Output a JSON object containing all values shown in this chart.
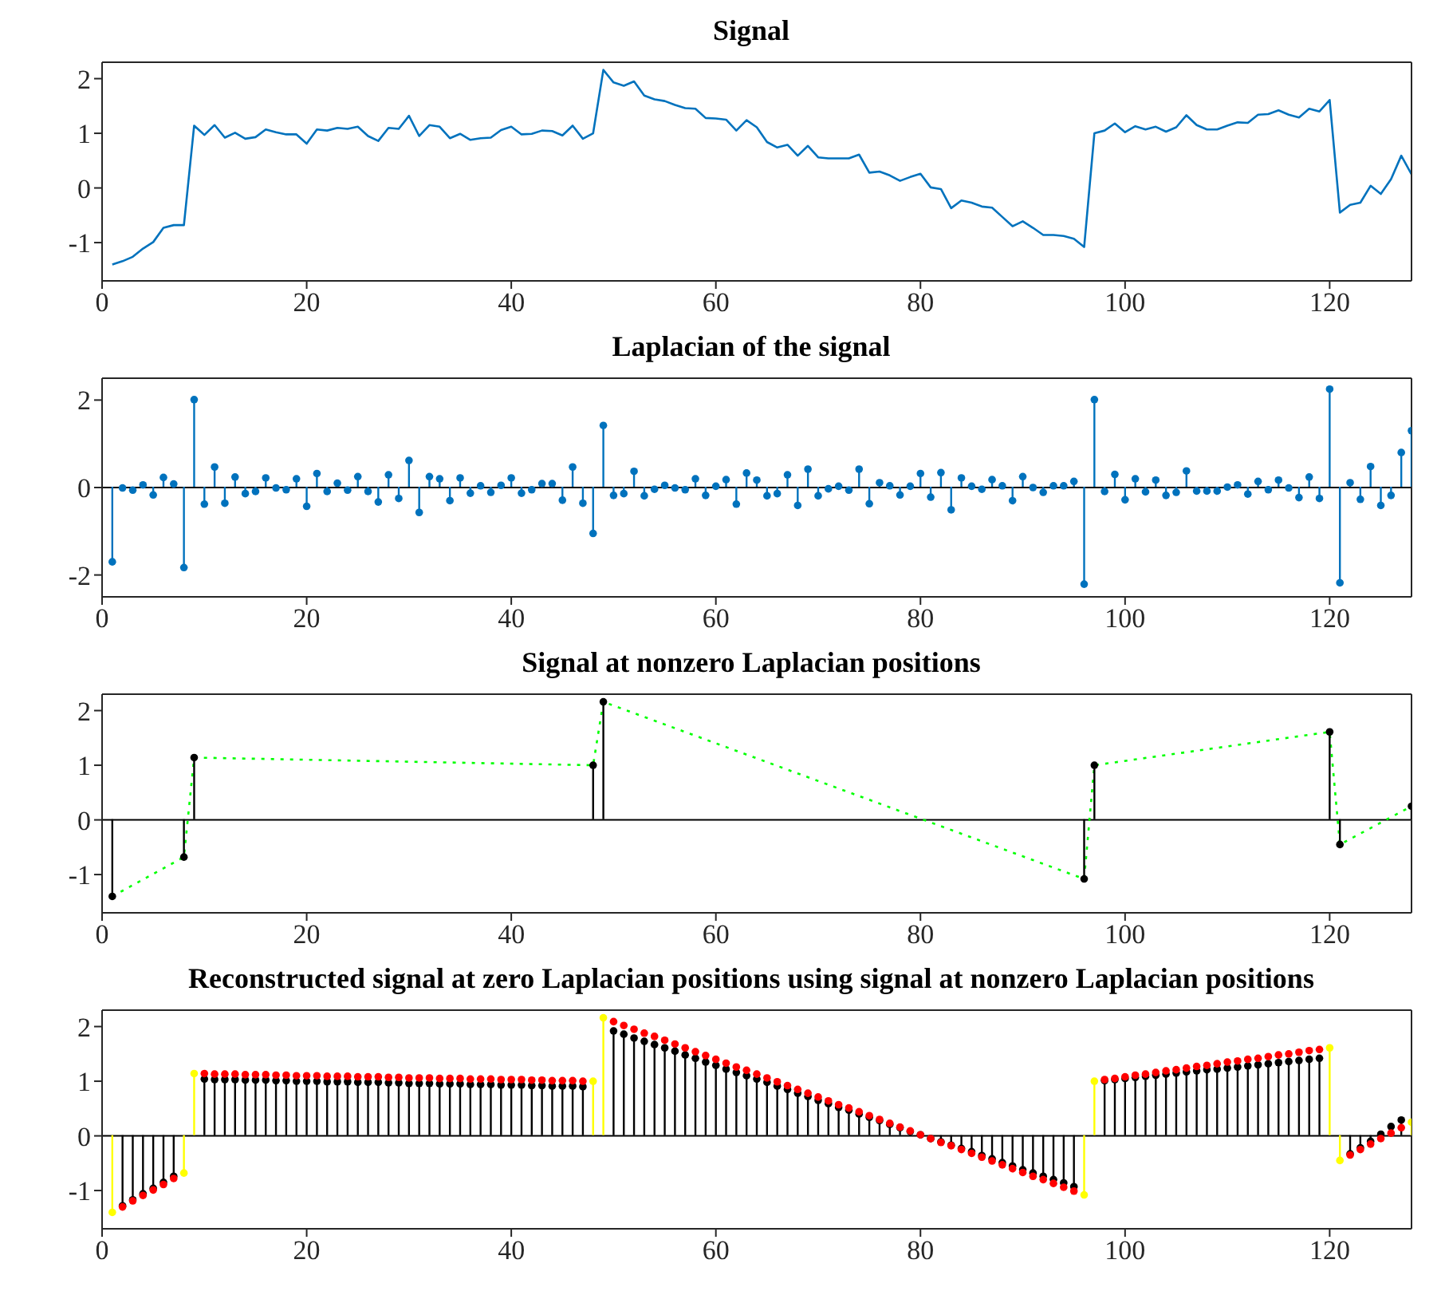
{
  "chart_data": [
    {
      "type": "line",
      "title": "Signal",
      "x": [
        1,
        2,
        3,
        4,
        5,
        6,
        7,
        8,
        9,
        10,
        11,
        12,
        13,
        14,
        15,
        16,
        17,
        18,
        19,
        20,
        21,
        22,
        23,
        24,
        25,
        26,
        27,
        28,
        29,
        30,
        31,
        32,
        33,
        34,
        35,
        36,
        37,
        38,
        39,
        40,
        41,
        42,
        43,
        44,
        45,
        46,
        47,
        48,
        49,
        50,
        51,
        52,
        53,
        54,
        55,
        56,
        57,
        58,
        59,
        60,
        61,
        62,
        63,
        64,
        65,
        66,
        67,
        68,
        69,
        70,
        71,
        72,
        73,
        74,
        75,
        76,
        77,
        78,
        79,
        80,
        81,
        82,
        83,
        84,
        85,
        86,
        87,
        88,
        89,
        90,
        91,
        92,
        93,
        94,
        95,
        96,
        97,
        98,
        99,
        100,
        101,
        102,
        103,
        104,
        105,
        106,
        107,
        108,
        109,
        110,
        111,
        112,
        113,
        114,
        115,
        116,
        117,
        118,
        119,
        120,
        121,
        122,
        123,
        124,
        125,
        126,
        127,
        128
      ],
      "xlim": [
        0,
        128
      ],
      "xticks": [
        0,
        20,
        40,
        60,
        80,
        100,
        120
      ],
      "ylim": [
        -1.7,
        2.3
      ],
      "yticks": [
        -1,
        0,
        1,
        2
      ],
      "series": [
        {
          "color": "#0072bd",
          "values": [
            -1.4,
            -1.34,
            -1.26,
            -1.11,
            -0.99,
            -0.73,
            -0.68,
            -0.68,
            1.14,
            0.97,
            1.15,
            0.92,
            1.01,
            0.9,
            0.93,
            1.07,
            1.02,
            0.98,
            0.98,
            0.81,
            1.07,
            1.05,
            1.1,
            1.08,
            1.12,
            0.95,
            0.86,
            1.1,
            1.08,
            1.32,
            0.95,
            1.15,
            1.12,
            0.91,
            0.99,
            0.88,
            0.91,
            0.92,
            1.06,
            1.12,
            0.98,
            0.99,
            1.05,
            1.04,
            0.96,
            1.14,
            0.9,
            1.0,
            2.16,
            1.93,
            1.87,
            1.95,
            1.69,
            1.62,
            1.59,
            1.52,
            1.46,
            1.45,
            1.28,
            1.27,
            1.25,
            1.05,
            1.24,
            1.11,
            0.84,
            0.74,
            0.79,
            0.59,
            0.77,
            0.56,
            0.54,
            0.54,
            0.54,
            0.61,
            0.28,
            0.3,
            0.23,
            0.13,
            0.2,
            0.26,
            0.01,
            -0.02,
            -0.37,
            -0.23,
            -0.27,
            -0.34,
            -0.36,
            -0.53,
            -0.7,
            -0.61,
            -0.73,
            -0.86,
            -0.86,
            -0.88,
            -0.93,
            -1.08,
            1.0,
            1.05,
            1.18,
            1.02,
            1.13,
            1.07,
            1.12,
            1.03,
            1.11,
            1.33,
            1.15,
            1.07,
            1.07,
            1.14,
            1.2,
            1.19,
            1.34,
            1.35,
            1.42,
            1.34,
            1.29,
            1.45,
            1.4,
            1.61,
            -0.45,
            -0.31,
            -0.27,
            0.04,
            -0.11,
            0.16,
            0.59,
            0.25
          ]
        }
      ]
    },
    {
      "type": "lollipop",
      "title": "Laplacian of the signal",
      "marker": "circle",
      "x": [
        1,
        2,
        3,
        4,
        5,
        6,
        7,
        8,
        9,
        10,
        11,
        12,
        13,
        14,
        15,
        16,
        17,
        18,
        19,
        20,
        21,
        22,
        23,
        24,
        25,
        26,
        27,
        28,
        29,
        30,
        31,
        32,
        33,
        34,
        35,
        36,
        37,
        38,
        39,
        40,
        41,
        42,
        43,
        44,
        45,
        46,
        47,
        48,
        49,
        50,
        51,
        52,
        53,
        54,
        55,
        56,
        57,
        58,
        59,
        60,
        61,
        62,
        63,
        64,
        65,
        66,
        67,
        68,
        69,
        70,
        71,
        72,
        73,
        74,
        75,
        76,
        77,
        78,
        79,
        80,
        81,
        82,
        83,
        84,
        85,
        86,
        87,
        88,
        89,
        90,
        91,
        92,
        93,
        94,
        95,
        96,
        97,
        98,
        99,
        100,
        101,
        102,
        103,
        104,
        105,
        106,
        107,
        108,
        109,
        110,
        111,
        112,
        113,
        114,
        115,
        116,
        117,
        118,
        119,
        120,
        121,
        122,
        123,
        124,
        125,
        126,
        127,
        128
      ],
      "xlim": [
        0,
        128
      ],
      "xticks": [
        0,
        20,
        40,
        60,
        80,
        100,
        120
      ],
      "ylim": [
        -2.5,
        2.5
      ],
      "yticks": [
        -2,
        0,
        2
      ],
      "series": [
        {
          "color": "#0072bd",
          "values": [
            -1.7,
            -0.01,
            -0.06,
            0.06,
            -0.17,
            0.23,
            0.08,
            -1.83,
            2.01,
            -0.38,
            0.47,
            -0.36,
            0.24,
            -0.14,
            -0.09,
            0.22,
            -0.01,
            -0.05,
            0.2,
            -0.43,
            0.32,
            -0.09,
            0.1,
            -0.06,
            0.25,
            -0.09,
            -0.33,
            0.29,
            -0.25,
            0.62,
            -0.57,
            0.25,
            0.2,
            -0.3,
            0.22,
            -0.13,
            0.04,
            -0.11,
            0.05,
            0.22,
            -0.13,
            -0.05,
            0.09,
            0.09,
            -0.29,
            0.47,
            -0.36,
            -1.05,
            1.42,
            -0.18,
            -0.14,
            0.37,
            -0.19,
            -0.04,
            0.05,
            -0.01,
            -0.05,
            0.2,
            -0.18,
            0.03,
            0.18,
            -0.38,
            0.33,
            0.17,
            -0.19,
            -0.14,
            0.29,
            -0.41,
            0.42,
            -0.19,
            -0.03,
            0.03,
            -0.06,
            0.42,
            -0.37,
            0.11,
            0.04,
            -0.17,
            0.03,
            0.32,
            -0.22,
            0.34,
            -0.51,
            0.22,
            0.03,
            -0.04,
            0.18,
            0.04,
            -0.3,
            0.25,
            0.0,
            -0.11,
            0.04,
            0.04,
            0.14,
            -2.21,
            2.01,
            -0.09,
            0.3,
            -0.28,
            0.2,
            -0.1,
            0.17,
            -0.18,
            -0.11,
            0.38,
            -0.08,
            -0.08,
            -0.08,
            0.01,
            0.06,
            -0.15,
            0.14,
            -0.05,
            0.17,
            -0.01,
            -0.23,
            0.24,
            -0.25,
            2.25,
            -2.18,
            0.11,
            -0.27,
            0.48,
            -0.41,
            -0.18,
            0.8,
            1.3
          ]
        }
      ]
    },
    {
      "type": "lollipop",
      "title": "Signal at nonzero Laplacian positions",
      "marker": "circle",
      "xlim": [
        0,
        128
      ],
      "xticks": [
        0,
        20,
        40,
        60,
        80,
        100,
        120
      ],
      "ylim": [
        -1.7,
        2.3
      ],
      "yticks": [
        -1,
        0,
        1,
        2
      ],
      "series": [
        {
          "type": "lollipop",
          "color": "#000000",
          "x": [
            1,
            8,
            9,
            48,
            49,
            96,
            97,
            120,
            121,
            128
          ],
          "values": [
            -1.4,
            -0.68,
            1.14,
            1.0,
            2.16,
            -1.08,
            1.0,
            1.61,
            -0.45,
            0.25
          ]
        },
        {
          "type": "line",
          "color": "#00ff00",
          "line_style": "dotted",
          "marker": "none",
          "x": [
            1,
            8,
            9,
            48,
            49,
            96,
            97,
            120,
            121,
            128
          ],
          "values": [
            -1.4,
            -0.68,
            1.14,
            1.0,
            2.16,
            -1.08,
            1.0,
            1.61,
            -0.45,
            0.25
          ]
        }
      ]
    },
    {
      "type": "lollipop",
      "title": "Reconstructed signal at zero Laplacian positions using signal at nonzero Laplacian positions",
      "marker": "circle",
      "xlim": [
        0,
        128
      ],
      "xticks": [
        0,
        20,
        40,
        60,
        80,
        100,
        120
      ],
      "ylim": [
        -1.7,
        2.3
      ],
      "yticks": [
        -1,
        0,
        1,
        2
      ],
      "series": [
        {
          "type": "lollipop",
          "color": "#000000",
          "x": [
            2,
            3,
            4,
            5,
            6,
            7,
            10,
            11,
            12,
            13,
            14,
            15,
            16,
            17,
            18,
            19,
            20,
            21,
            22,
            23,
            24,
            25,
            26,
            27,
            28,
            29,
            30,
            31,
            32,
            33,
            34,
            35,
            36,
            37,
            38,
            39,
            40,
            41,
            42,
            43,
            44,
            45,
            46,
            47,
            50,
            51,
            52,
            53,
            54,
            55,
            56,
            57,
            58,
            59,
            60,
            61,
            62,
            63,
            64,
            65,
            66,
            67,
            68,
            69,
            70,
            71,
            72,
            73,
            74,
            75,
            76,
            77,
            78,
            79,
            80,
            81,
            82,
            83,
            84,
            85,
            86,
            87,
            88,
            89,
            90,
            91,
            92,
            93,
            94,
            95,
            98,
            99,
            100,
            101,
            102,
            103,
            104,
            105,
            106,
            107,
            108,
            109,
            110,
            111,
            112,
            113,
            114,
            115,
            116,
            117,
            118,
            119,
            122,
            123,
            124,
            125,
            126,
            127
          ],
          "values": [
            -1.28,
            -1.17,
            -1.06,
            -0.96,
            -0.85,
            -0.74,
            1.04,
            1.03,
            1.03,
            1.03,
            1.02,
            1.02,
            1.02,
            1.01,
            1.01,
            1.0,
            1.0,
            1.0,
            0.99,
            0.99,
            0.99,
            0.98,
            0.98,
            0.98,
            0.97,
            0.97,
            0.96,
            0.96,
            0.96,
            0.95,
            0.95,
            0.95,
            0.94,
            0.94,
            0.94,
            0.93,
            0.93,
            0.93,
            0.92,
            0.92,
            0.91,
            0.91,
            0.91,
            0.9,
            1.92,
            1.86,
            1.79,
            1.73,
            1.67,
            1.61,
            1.55,
            1.48,
            1.42,
            1.35,
            1.29,
            1.22,
            1.16,
            1.1,
            1.04,
            0.98,
            0.91,
            0.85,
            0.78,
            0.72,
            0.65,
            0.59,
            0.52,
            0.47,
            0.4,
            0.34,
            0.28,
            0.21,
            0.15,
            0.08,
            0.02,
            -0.05,
            -0.11,
            -0.17,
            -0.23,
            -0.29,
            -0.36,
            -0.42,
            -0.49,
            -0.55,
            -0.62,
            -0.68,
            -0.74,
            -0.8,
            -0.86,
            -0.93,
            1.01,
            1.03,
            1.05,
            1.07,
            1.09,
            1.11,
            1.13,
            1.15,
            1.17,
            1.19,
            1.21,
            1.22,
            1.24,
            1.26,
            1.28,
            1.3,
            1.32,
            1.34,
            1.36,
            1.38,
            1.4,
            1.42,
            -0.33,
            -0.22,
            -0.1,
            0.03,
            0.17,
            0.29
          ]
        },
        {
          "type": "scatter",
          "color": "#ff0000",
          "x": [
            2,
            3,
            4,
            5,
            6,
            7,
            10,
            11,
            12,
            13,
            14,
            15,
            16,
            17,
            18,
            19,
            20,
            21,
            22,
            23,
            24,
            25,
            26,
            27,
            28,
            29,
            30,
            31,
            32,
            33,
            34,
            35,
            36,
            37,
            38,
            39,
            40,
            41,
            42,
            43,
            44,
            45,
            46,
            47,
            50,
            51,
            52,
            53,
            54,
            55,
            56,
            57,
            58,
            59,
            60,
            61,
            62,
            63,
            64,
            65,
            66,
            67,
            68,
            69,
            70,
            71,
            72,
            73,
            74,
            75,
            76,
            77,
            78,
            79,
            80,
            81,
            82,
            83,
            84,
            85,
            86,
            87,
            88,
            89,
            90,
            91,
            92,
            93,
            94,
            95,
            98,
            99,
            100,
            101,
            102,
            103,
            104,
            105,
            106,
            107,
            108,
            109,
            110,
            111,
            112,
            113,
            114,
            115,
            116,
            117,
            118,
            119,
            122,
            123,
            124,
            125,
            126,
            127
          ],
          "values": [
            -1.3,
            -1.19,
            -1.09,
            -0.99,
            -0.89,
            -0.78,
            1.14,
            1.13,
            1.13,
            1.13,
            1.12,
            1.12,
            1.12,
            1.11,
            1.11,
            1.1,
            1.1,
            1.1,
            1.09,
            1.09,
            1.09,
            1.08,
            1.08,
            1.08,
            1.07,
            1.07,
            1.06,
            1.06,
            1.06,
            1.05,
            1.05,
            1.05,
            1.04,
            1.04,
            1.04,
            1.03,
            1.03,
            1.03,
            1.02,
            1.02,
            1.01,
            1.01,
            1.01,
            1.0,
            2.09,
            2.02,
            1.95,
            1.88,
            1.82,
            1.75,
            1.68,
            1.61,
            1.54,
            1.47,
            1.4,
            1.33,
            1.26,
            1.2,
            1.13,
            1.06,
            0.99,
            0.92,
            0.85,
            0.78,
            0.71,
            0.64,
            0.57,
            0.51,
            0.44,
            0.37,
            0.3,
            0.23,
            0.16,
            0.09,
            0.02,
            -0.05,
            -0.12,
            -0.18,
            -0.25,
            -0.32,
            -0.39,
            -0.46,
            -0.53,
            -0.6,
            -0.67,
            -0.74,
            -0.8,
            -0.87,
            -0.94,
            -1.01,
            1.03,
            1.05,
            1.08,
            1.11,
            1.13,
            1.16,
            1.19,
            1.21,
            1.24,
            1.27,
            1.29,
            1.32,
            1.35,
            1.37,
            1.4,
            1.42,
            1.45,
            1.48,
            1.5,
            1.53,
            1.56,
            1.58,
            -0.35,
            -0.25,
            -0.15,
            -0.05,
            0.05,
            0.15
          ]
        },
        {
          "type": "lollipop",
          "color": "#ffff00",
          "x": [
            1,
            8,
            9,
            48,
            49,
            96,
            97,
            120,
            121,
            128
          ],
          "values": [
            -1.4,
            -0.68,
            1.14,
            1.0,
            2.16,
            -1.08,
            1.0,
            1.61,
            -0.45,
            0.25
          ]
        }
      ]
    }
  ]
}
